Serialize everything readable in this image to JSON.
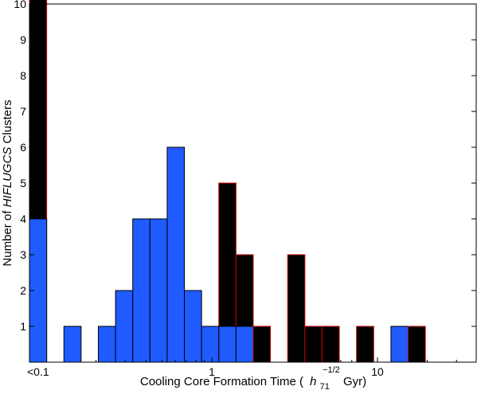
{
  "chart_data": {
    "type": "bar",
    "xlabel_parts": {
      "before": "Cooling Core Formation Time (",
      "h": "h",
      "sub": "71",
      "sup": "−1/2",
      "after": " Gyr)"
    },
    "ylabel_parts": {
      "before": "Number of ",
      "italic": "HIFLUGCS",
      "after": " Clusters"
    },
    "x_tick_labels": [
      "<0.1",
      "1",
      "10"
    ],
    "y_tick_labels": [
      "1",
      "2",
      "3",
      "4",
      "5",
      "6",
      "7",
      "8",
      "9",
      "10"
    ],
    "ylim": [
      0,
      10
    ],
    "grid": false,
    "colors": {
      "blue": "#1f5bff",
      "black": "#000000",
      "red_edge": "#cc0000"
    },
    "bins": [
      {
        "blue": 4,
        "black": 10
      },
      {
        "blue": 0,
        "black": 0
      },
      {
        "blue": 1,
        "black": 0
      },
      {
        "blue": 0,
        "black": 0
      },
      {
        "blue": 1,
        "black": 0
      },
      {
        "blue": 2,
        "black": 0
      },
      {
        "blue": 4,
        "black": 0
      },
      {
        "blue": 4,
        "black": 0
      },
      {
        "blue": 6,
        "black": 0
      },
      {
        "blue": 2,
        "black": 0
      },
      {
        "blue": 1,
        "black": 0
      },
      {
        "blue": 1,
        "black": 4
      },
      {
        "blue": 1,
        "black": 2
      },
      {
        "blue": 0,
        "black": 1
      },
      {
        "blue": 0,
        "black": 0
      },
      {
        "blue": 0,
        "black": 3
      },
      {
        "blue": 0,
        "black": 1
      },
      {
        "blue": 0,
        "black": 1
      },
      {
        "blue": 0,
        "black": 0
      },
      {
        "blue": 0,
        "black": 1
      },
      {
        "blue": 0,
        "black": 0
      },
      {
        "blue": 1,
        "black": 0
      },
      {
        "blue": 0,
        "black": 1
      },
      {
        "blue": 0,
        "black": 0
      },
      {
        "blue": 0,
        "black": 0
      },
      {
        "blue": 0,
        "black": 0
      }
    ]
  }
}
